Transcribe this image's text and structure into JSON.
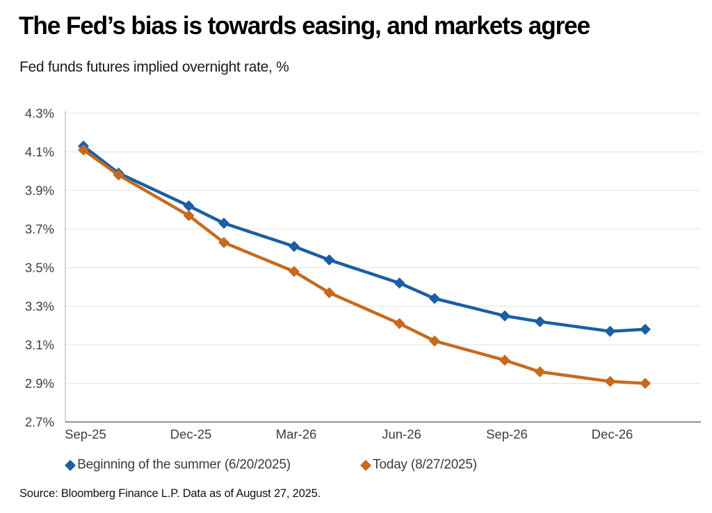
{
  "header": {
    "title": "The Fed’s bias is towards easing, and markets agree",
    "subtitle": "Fed funds futures implied overnight rate, %"
  },
  "legend": [
    {
      "label": "Beginning of the summer (6/20/2025)",
      "color": "#1B5EA3",
      "marker": "diamond-icon"
    },
    {
      "label": "Today (8/27/2025)",
      "color": "#C76A1E",
      "marker": "diamond-icon"
    }
  ],
  "source": "Source: Bloomberg Finance L.P. Data as of August 27, 2025.",
  "colors": {
    "series_blue": "#1B5EA3",
    "series_orange": "#C76A1E",
    "gridline": "#E7E7E7",
    "axis_bottom": "#6E6E6E",
    "axis_left": "#C2C2C2",
    "tick_label": "#3D3D3D"
  },
  "chart_data": {
    "type": "line",
    "title": "The Fed’s bias is towards easing, and markets agree",
    "ylabel": "Fed funds futures implied overnight rate, %",
    "xlabel": "",
    "grid": "horizontal",
    "legend_position": "bottom",
    "marker": "diamond",
    "ylim": [
      2.7,
      4.3
    ],
    "y_tick_step": 0.2,
    "y_tick_labels": [
      "4.3%",
      "4.1%",
      "3.9%",
      "3.7%",
      "3.5%",
      "3.3%",
      "3.1%",
      "2.9%",
      "2.7%"
    ],
    "y_tick_values": [
      4.3,
      4.1,
      3.9,
      3.7,
      3.5,
      3.3,
      3.1,
      2.9,
      2.7
    ],
    "x_tick_labels": [
      "Sep-25",
      "Dec-25",
      "Mar-26",
      "Jun-26",
      "Sep-26",
      "Dec-26"
    ],
    "x_tick_month_index": [
      0,
      3,
      6,
      9,
      12,
      15
    ],
    "x_point_labels": [
      "Sep-25",
      "Oct-25",
      "Dec-25",
      "Jan-26",
      "Mar-26",
      "Apr-26",
      "Jun-26",
      "Jul-26",
      "Sep-26",
      "Oct-26",
      "Dec-26",
      "Jan-27"
    ],
    "x_point_month_index": [
      0,
      1,
      3,
      4,
      6,
      7,
      9,
      10,
      12,
      13,
      15,
      16
    ],
    "xlim_months": [
      -0.52,
      17.6
    ],
    "series": [
      {
        "name": "Beginning of the summer (6/20/2025)",
        "color": "#1B5EA3",
        "values": [
          4.13,
          3.99,
          3.82,
          3.73,
          3.61,
          3.54,
          3.42,
          3.34,
          3.25,
          3.22,
          3.17,
          3.18
        ]
      },
      {
        "name": "Today (8/27/2025)",
        "color": "#C76A1E",
        "values": [
          4.11,
          3.98,
          3.77,
          3.63,
          3.48,
          3.37,
          3.21,
          3.12,
          3.02,
          2.96,
          2.91,
          2.9
        ]
      }
    ]
  }
}
